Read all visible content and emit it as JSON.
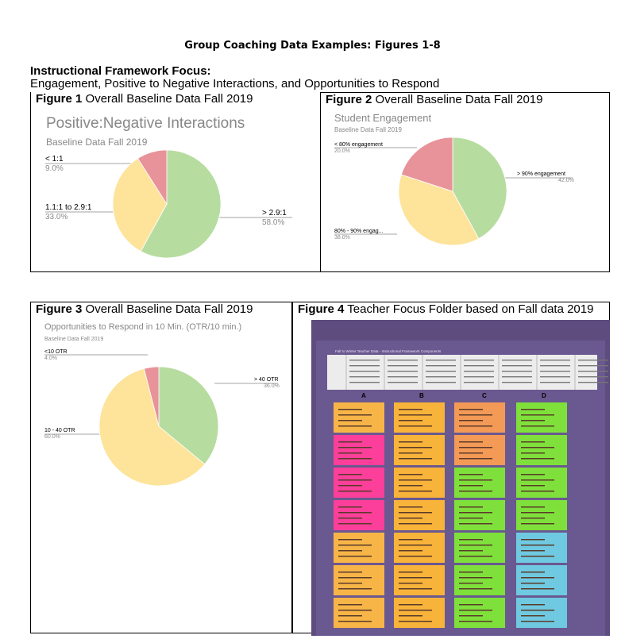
{
  "document": {
    "title": "Group Coaching Data Examples: Figures 1-8",
    "focus_heading": "Instructional Framework Focus:",
    "focus_subheading": "Engagement, Positive to Negative Interactions, and Opportunities to Respond"
  },
  "figures": [
    {
      "label": "Figure 1",
      "caption": "Overall Baseline Data Fall 2019"
    },
    {
      "label": "Figure 2",
      "caption": "Overall Baseline Data Fall 2019"
    },
    {
      "label": "Figure 3",
      "caption": "Overall Baseline Data Fall 2019"
    },
    {
      "label": "Figure 4",
      "caption": "Teacher Focus Folder based on Fall data 2019"
    }
  ],
  "colors": {
    "green": "#b7dca0",
    "yellow": "#fde49a",
    "red": "#e8929a",
    "grey_text": "#888888"
  },
  "chart_data": [
    {
      "type": "pie",
      "title": "Positive:Negative Interactions",
      "subtitle": "Baseline Data Fall 2019",
      "slices": [
        {
          "label": "> 2.9:1",
          "value": 58.0,
          "display": "58.0%",
          "color": "#b7dca0"
        },
        {
          "label": "1.1:1 to 2.9:1",
          "value": 33.0,
          "display": "33.0%",
          "color": "#fde49a"
        },
        {
          "label": "< 1:1",
          "value": 9.0,
          "display": "9.0%",
          "color": "#e8929a"
        }
      ]
    },
    {
      "type": "pie",
      "title": "Student Engagement",
      "subtitle": "Baseline Data Fall 2019",
      "slices": [
        {
          "label": "> 90% engagement",
          "value": 42.0,
          "display": "42.0%",
          "color": "#b7dca0"
        },
        {
          "label": "80% - 90% engag...",
          "value": 38.0,
          "display": "38.0%",
          "color": "#fde49a"
        },
        {
          "label": "< 80% engagement",
          "value": 20.0,
          "display": "20.0%",
          "color": "#e8929a"
        }
      ]
    },
    {
      "type": "pie",
      "title": "Opportunities to Respond in 10 Min. (OTR/10 min.)",
      "subtitle": "Baseline Data Fall 2019",
      "slices": [
        {
          "label": "> 40 OTR",
          "value": 36.0,
          "display": "36.0%",
          "color": "#b7dca0"
        },
        {
          "label": "10 - 40 OTR",
          "value": 60.0,
          "display": "60.0%",
          "color": "#fde49a"
        },
        {
          "label": "<10 OTR",
          "value": 4.0,
          "display": "4.0%",
          "color": "#e8929a"
        }
      ]
    }
  ],
  "photo": {
    "header": "Fall to Winter Teacher Data - Instructional Framework Components",
    "columns": [
      "A",
      "B",
      "C",
      "D"
    ]
  }
}
